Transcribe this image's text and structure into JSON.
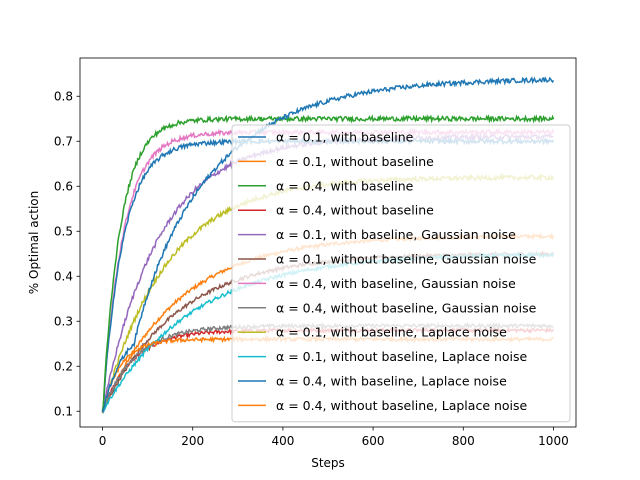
{
  "chart_data": {
    "type": "line",
    "title": "",
    "xlabel": "Steps",
    "ylabel": "% Optimal action",
    "xlim": [
      -50,
      1050
    ],
    "ylim": [
      0.065,
      0.885
    ],
    "xticks": [
      0,
      200,
      400,
      600,
      800,
      1000
    ],
    "yticks": [
      0.1,
      0.2,
      0.3,
      0.4,
      0.5,
      0.6,
      0.7,
      0.8
    ],
    "grid": false,
    "legend_position": "lower-right",
    "x_range": [
      0,
      1000
    ],
    "series": [
      {
        "name": "α = 0.1, with baseline",
        "color": "#1f77b4",
        "start": 0.1,
        "final": 0.84,
        "rate": 0.0055,
        "offset": 70,
        "noise": 0.005
      },
      {
        "name": "α = 0.1, without baseline",
        "color": "#ff7f0e",
        "start": 0.1,
        "final": 0.49,
        "rate": 0.006,
        "offset": 0,
        "noise": 0.004
      },
      {
        "name": "α = 0.4, with baseline",
        "color": "#2ca02c",
        "start": 0.1,
        "final": 0.75,
        "rate": 0.025,
        "offset": 0,
        "noise": 0.005
      },
      {
        "name": "α = 0.4, without baseline",
        "color": "#d62728",
        "start": 0.1,
        "final": 0.28,
        "rate": 0.015,
        "offset": 0,
        "noise": 0.004
      },
      {
        "name": "α = 0.1, with baseline, Gaussian noise",
        "color": "#9467bd",
        "start": 0.1,
        "final": 0.71,
        "rate": 0.008,
        "offset": 0,
        "noise": 0.005
      },
      {
        "name": "α = 0.1, without baseline, Gaussian noise",
        "color": "#8c564b",
        "start": 0.1,
        "final": 0.45,
        "rate": 0.006,
        "offset": 0,
        "noise": 0.004
      },
      {
        "name": "α = 0.4, with baseline, Gaussian noise",
        "color": "#e377c2",
        "start": 0.1,
        "final": 0.72,
        "rate": 0.022,
        "offset": 0,
        "noise": 0.005
      },
      {
        "name": "α = 0.4, without baseline, Gaussian noise",
        "color": "#7f7f7f",
        "start": 0.1,
        "final": 0.29,
        "rate": 0.014,
        "offset": 0,
        "noise": 0.004
      },
      {
        "name": "α = 0.1, with baseline, Laplace noise",
        "color": "#bcbd22",
        "start": 0.1,
        "final": 0.62,
        "rate": 0.007,
        "offset": 0,
        "noise": 0.005
      },
      {
        "name": "α = 0.1, without baseline, Laplace noise",
        "color": "#17becf",
        "start": 0.1,
        "final": 0.45,
        "rate": 0.005,
        "offset": 0,
        "noise": 0.004
      },
      {
        "name": "α = 0.4, with baseline, Laplace noise",
        "color": "#1f77b4",
        "start": 0.1,
        "final": 0.7,
        "rate": 0.022,
        "offset": 0,
        "noise": 0.005
      },
      {
        "name": "α = 0.4, without baseline, Laplace noise",
        "color": "#ff7f0e",
        "start": 0.1,
        "final": 0.26,
        "rate": 0.025,
        "offset": 0,
        "noise": 0.004
      }
    ]
  }
}
